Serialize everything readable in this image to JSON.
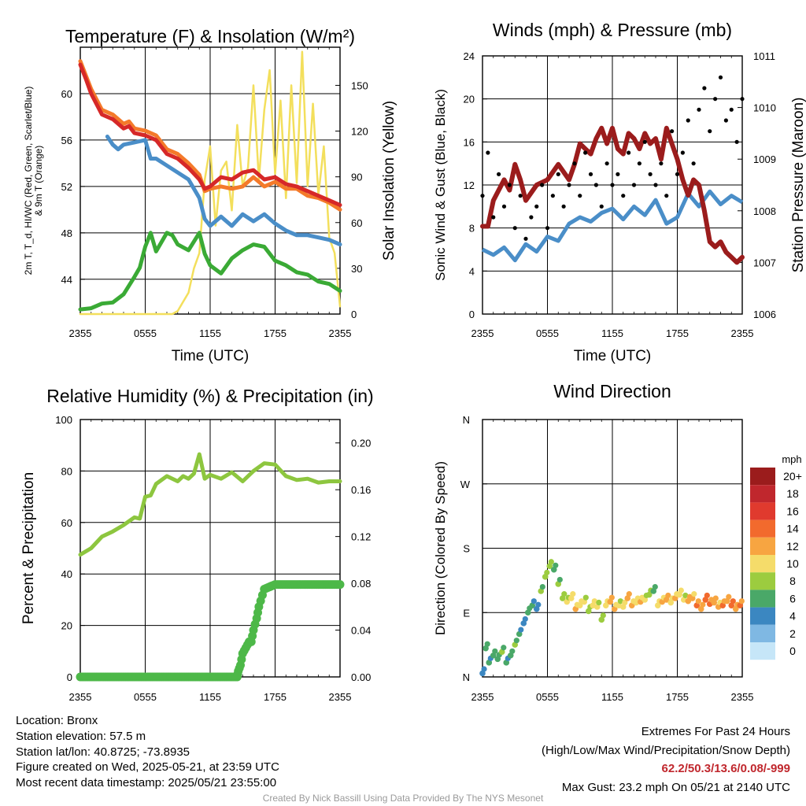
{
  "chart_data": [
    {
      "type": "line",
      "title": "Temperature (F) & Insolation (W/m²)",
      "xlabel": "Time (UTC)",
      "ylabel": "2m T, T_d, HI/WC (Red, Green, Scarlet/Blue) & 9m T (Orange)",
      "ylabel2": "Solar Insolation (Yellow)",
      "x_ticks": [
        "2355",
        "0555",
        "1155",
        "1755",
        "2355"
      ],
      "ylim": [
        41,
        64
      ],
      "y_ticks": [
        44,
        48,
        52,
        56,
        60
      ],
      "y2lim": [
        0,
        175
      ],
      "y2_ticks": [
        0,
        30,
        60,
        90,
        120,
        150
      ],
      "colors": {
        "temp": "#d62828",
        "temp9m": "#f47a2a",
        "wc": "#4a8ec8",
        "dewpoint": "#3aaa35",
        "solar": "#f3df5c"
      },
      "series": [
        {
          "key": "temp9m",
          "x": [
            0,
            0.5,
            1,
            2,
            3,
            4,
            4.5,
            5,
            6,
            7,
            8,
            9,
            10,
            11,
            11.5,
            12,
            13,
            14,
            15,
            16,
            17,
            18,
            19,
            20,
            21,
            22,
            23,
            24
          ],
          "values": [
            62.8,
            61.6,
            60.4,
            58.6,
            58.2,
            57.4,
            57.6,
            57.0,
            56.8,
            56.4,
            55.2,
            54.8,
            54.0,
            53.0,
            51.6,
            51.8,
            52.0,
            51.8,
            52.0,
            52.8,
            52.0,
            52.4,
            51.8,
            51.8,
            51.2,
            51.0,
            50.6,
            50.0
          ]
        },
        {
          "key": "temp",
          "x": [
            0,
            0.5,
            1,
            2,
            3,
            4,
            4.5,
            5,
            6,
            7,
            8,
            9,
            10,
            11,
            11.5,
            12,
            13,
            14,
            15,
            16,
            17,
            18,
            19,
            20,
            21,
            22,
            23,
            24
          ],
          "values": [
            62.5,
            61.3,
            60.0,
            58.2,
            57.8,
            57.0,
            57.2,
            56.6,
            56.4,
            56.0,
            54.8,
            54.4,
            53.6,
            52.6,
            51.8,
            52.0,
            52.8,
            52.6,
            53.2,
            53.4,
            52.6,
            52.8,
            52.2,
            52.0,
            51.6,
            51.2,
            50.8,
            50.4
          ]
        },
        {
          "key": "wc",
          "x": [
            2.5,
            3,
            3.5,
            4,
            5,
            6,
            6.5,
            7,
            8,
            9,
            10,
            11,
            11.5,
            12,
            13,
            14,
            15,
            16,
            17,
            18,
            19,
            20,
            21,
            22,
            23,
            24
          ],
          "values": [
            56.3,
            55.6,
            55.2,
            55.6,
            55.8,
            56.0,
            54.4,
            54.4,
            53.8,
            53.2,
            52.6,
            51.0,
            49.2,
            48.6,
            49.4,
            48.6,
            49.6,
            49.0,
            49.6,
            48.8,
            48.2,
            47.8,
            47.8,
            47.6,
            47.4,
            47.0
          ]
        },
        {
          "key": "dewpoint",
          "x": [
            0,
            1,
            2,
            3,
            4,
            5,
            5.5,
            6,
            6.5,
            7,
            8,
            8.5,
            9,
            10,
            11,
            11.5,
            12,
            13,
            14,
            15,
            16,
            17,
            18,
            19,
            20,
            21,
            22,
            23,
            24
          ],
          "values": [
            41.4,
            41.5,
            41.9,
            42.0,
            42.7,
            44.2,
            45.0,
            46.8,
            48.0,
            46.4,
            48.0,
            47.8,
            47.0,
            46.5,
            48.0,
            46.2,
            45.2,
            44.5,
            45.8,
            46.5,
            47.0,
            46.8,
            45.6,
            45.2,
            44.6,
            44.4,
            43.8,
            43.6,
            43.0
          ]
        },
        {
          "key": "solar",
          "x": [
            0,
            1,
            2,
            3,
            4,
            5,
            6,
            7,
            8,
            8.5,
            9,
            9.5,
            10,
            10.5,
            11,
            11.5,
            12,
            12.5,
            13,
            13.5,
            14,
            14.5,
            15,
            15.5,
            16,
            16.5,
            17,
            17.5,
            18,
            18.5,
            19,
            19.5,
            20,
            20.5,
            21,
            21.5,
            22,
            22.5,
            23,
            23.5,
            24
          ],
          "values": [
            0,
            0,
            0,
            0,
            0,
            0,
            0,
            0,
            0,
            0,
            2,
            8,
            14,
            30,
            40,
            88,
            110,
            58,
            94,
            100,
            68,
            124,
            84,
            96,
            150,
            88,
            134,
            160,
            92,
            140,
            76,
            150,
            86,
            172,
            84,
            138,
            78,
            110,
            50,
            40,
            5
          ]
        }
      ]
    },
    {
      "type": "line",
      "title": "Winds (mph) & Pressure (mb)",
      "xlabel": "Time (UTC)",
      "ylabel": "Sonic Wind & Gust (Blue, Black)",
      "ylabel2": "Station Pressure (Maroon)",
      "x_ticks": [
        "2355",
        "0555",
        "1155",
        "1755",
        "2355"
      ],
      "ylim": [
        0,
        24
      ],
      "y_ticks": [
        0,
        4,
        8,
        12,
        16,
        20,
        24
      ],
      "y2lim": [
        1006,
        1011
      ],
      "y2_ticks": [
        1006,
        1007,
        1008,
        1009,
        1010,
        1011
      ],
      "colors": {
        "wind": "#4a8ec8",
        "gust": "#000000",
        "pressure": "#9b1c1c"
      },
      "series": [
        {
          "key": "wind",
          "x": [
            0,
            1,
            2,
            3,
            4,
            5,
            6,
            7,
            8,
            9,
            10,
            11,
            12,
            13,
            14,
            15,
            16,
            17,
            18,
            19,
            20,
            21,
            22,
            23,
            24
          ],
          "values": [
            6.0,
            5.5,
            6.2,
            5.0,
            6.5,
            5.8,
            7.2,
            6.8,
            8.4,
            9.0,
            8.6,
            9.4,
            9.8,
            8.8,
            10.0,
            9.2,
            10.6,
            8.4,
            9.0,
            11.2,
            10.0,
            11.4,
            10.2,
            11.0,
            10.4
          ]
        },
        {
          "key": "gust",
          "x": [
            0,
            0.5,
            1,
            1.5,
            2,
            2.5,
            3,
            3.5,
            4,
            4.5,
            5,
            5.5,
            6,
            6.5,
            7,
            7.5,
            8,
            8.5,
            9,
            9.5,
            10,
            10.5,
            11,
            11.5,
            12,
            12.5,
            13,
            13.5,
            14,
            14.5,
            15,
            15.5,
            16,
            16.5,
            17,
            17.5,
            18,
            18.5,
            19,
            19.5,
            20,
            20.5,
            21,
            21.5,
            22,
            22.5,
            23,
            23.5,
            24
          ],
          "values": [
            11,
            15,
            9,
            13,
            10,
            12,
            8,
            11,
            7,
            9,
            10,
            12,
            8,
            11,
            13,
            10,
            12,
            14,
            11,
            15,
            13,
            12,
            10,
            14,
            12,
            13,
            11,
            15,
            12,
            14,
            16,
            13,
            12,
            14,
            11,
            17,
            13,
            15,
            18,
            14,
            19,
            21,
            17,
            20,
            22,
            18,
            19,
            16,
            20
          ]
        },
        {
          "key": "pressure",
          "x": [
            0,
            0.5,
            1,
            1.5,
            2,
            2.5,
            3,
            3.5,
            4,
            5,
            6,
            7,
            8,
            8.5,
            9,
            9.5,
            10,
            10.5,
            11,
            11.5,
            12,
            12.5,
            13,
            13.5,
            14,
            14.5,
            15,
            15.5,
            16,
            16.5,
            17,
            17.5,
            18,
            18.5,
            19,
            19.5,
            20,
            20.5,
            21,
            21.5,
            22,
            22.5,
            23,
            23.5,
            24
          ],
          "values": [
            1007.7,
            1007.7,
            1008.2,
            1008.4,
            1008.6,
            1008.4,
            1008.9,
            1008.6,
            1008.2,
            1008.5,
            1008.6,
            1008.9,
            1008.6,
            1008.9,
            1009.3,
            1009.2,
            1009.1,
            1009.4,
            1009.6,
            1009.3,
            1009.6,
            1009.2,
            1009.1,
            1009.5,
            1009.4,
            1009.2,
            1009.5,
            1009.3,
            1009.4,
            1009.0,
            1009.6,
            1009.3,
            1009.0,
            1008.6,
            1008.3,
            1008.6,
            1008.5,
            1008.0,
            1007.4,
            1007.3,
            1007.4,
            1007.2,
            1007.1,
            1007.0,
            1007.1
          ]
        }
      ]
    },
    {
      "type": "line",
      "title": "Relative Humidity (%) & Precipitation (in)",
      "xlabel": "",
      "ylabel": "Percent & Precipitation",
      "x_ticks": [
        "2355",
        "0555",
        "1155",
        "1755",
        "2355"
      ],
      "ylim": [
        0,
        100
      ],
      "y_ticks": [
        0,
        20,
        40,
        60,
        80,
        100
      ],
      "y2lim": [
        0,
        0.22
      ],
      "y2_ticks": [
        "0.00",
        "0.04",
        "0.08",
        "0.12",
        "0.16",
        "0.20"
      ],
      "colors": {
        "rh": "#8dc63f",
        "precip": "#4db848"
      },
      "series": [
        {
          "key": "rh",
          "x": [
            0,
            1,
            2,
            3,
            4,
            5,
            5.5,
            6,
            6.5,
            7,
            8,
            9,
            9.5,
            10,
            10.5,
            11,
            11.5,
            12,
            13,
            14,
            15,
            16,
            17,
            18,
            19,
            20,
            21,
            22,
            23,
            24
          ],
          "values": [
            47.5,
            50.0,
            54.5,
            56.5,
            59.0,
            62.0,
            61.5,
            70.0,
            70.5,
            75.0,
            78.0,
            76.0,
            78.0,
            77.0,
            79.0,
            86.5,
            77.0,
            78.5,
            77.0,
            79.5,
            76.0,
            80.0,
            83.0,
            82.5,
            78.0,
            76.5,
            77.0,
            75.5,
            76.0,
            76.0
          ]
        },
        {
          "key": "precip",
          "x": [
            0,
            14.5,
            14.6,
            14.8,
            15,
            15.3,
            15.6,
            15.8,
            16,
            16.3,
            16.5,
            17,
            18,
            24
          ],
          "values": [
            0,
            0,
            0.005,
            0.01,
            0.02,
            0.025,
            0.03,
            0.03,
            0.04,
            0.05,
            0.06,
            0.075,
            0.079,
            0.079
          ]
        }
      ]
    },
    {
      "type": "scatter",
      "title": "Wind Direction",
      "ylabel": "Direction (Colored By Speed)",
      "x_ticks": [
        "2355",
        "0555",
        "1155",
        "1755",
        "2355"
      ],
      "y_ticks": [
        "N",
        "E",
        "S",
        "W",
        "N"
      ],
      "ylim": [
        0,
        360
      ],
      "legend": {
        "title": "mph",
        "labels": [
          "20+",
          "18",
          "16",
          "14",
          "12",
          "10",
          "8",
          "6",
          "4",
          "2",
          "0"
        ],
        "colors": [
          "#9b1c1c",
          "#c0272d",
          "#e03a2e",
          "#f26a2d",
          "#f7a541",
          "#f5dc6a",
          "#9ccc3f",
          "#4aa868",
          "#3b87c1",
          "#7fb8e3",
          "#c6e6f8"
        ]
      },
      "series": [
        {
          "key": "direction",
          "x": [
            0,
            0.3,
            0.6,
            1,
            1.4,
            1.8,
            2.2,
            2.6,
            3,
            3.4,
            3.8,
            4.2,
            4.6,
            5,
            5.4,
            5.8,
            6.2,
            6.6,
            7,
            7.4,
            7.8,
            8.2,
            8.6,
            9,
            9.4,
            9.8,
            10.2,
            10.6,
            11,
            11.4,
            11.8,
            12.2,
            12.6,
            13,
            13.4,
            13.8,
            14.2,
            14.6,
            15,
            15.4,
            15.8,
            16.2,
            16.6,
            17,
            17.4,
            17.8,
            18.2,
            18.6,
            19,
            19.4,
            19.8,
            20.2,
            20.6,
            21,
            21.4,
            21.8,
            22.2,
            22.6,
            23,
            23.4,
            23.8
          ],
          "values": [
            5,
            40,
            20,
            30,
            25,
            35,
            20,
            30,
            45,
            60,
            75,
            90,
            100,
            95,
            120,
            140,
            155,
            150,
            130,
            110,
            105,
            110,
            95,
            100,
            105,
            92,
            100,
            98,
            80,
            100,
            105,
            95,
            100,
            98,
            110,
            100,
            104,
            105,
            108,
            115,
            120,
            100,
            105,
            108,
            104,
            110,
            115,
            108,
            106,
            110,
            100,
            95,
            108,
            102,
            104,
            98,
            100,
            106,
            100,
            95,
            100
          ],
          "speeds": [
            4,
            6,
            5,
            6,
            6,
            7,
            5,
            6,
            7,
            5,
            4,
            6,
            5,
            4,
            7,
            8,
            8,
            6,
            7,
            8,
            9,
            10,
            11,
            10,
            9,
            8,
            10,
            9,
            8,
            10,
            12,
            11,
            9,
            10,
            12,
            11,
            10,
            11,
            9,
            8,
            6,
            10,
            11,
            12,
            10,
            11,
            10,
            9,
            12,
            11,
            13,
            12,
            14,
            13,
            12,
            11,
            13,
            12,
            14,
            12,
            13
          ]
        }
      ]
    }
  ],
  "footer": {
    "location": "Location: Bronx",
    "elevation": "Station elevation: 57.5 m",
    "latlon": "Station lat/lon: 40.8725; -73.8935",
    "created": "Figure created on Wed, 2025-05-21, at 23:59 UTC",
    "recent": "Most recent data timestamp: 2025/05/21 23:55:00",
    "extremes_title": "Extremes For Past 24 Hours",
    "extremes_sub": "(High/Low/Max Wind/Precipitation/Snow Depth)",
    "extremes_values": "62.2/50.3/13.6/0.08/-999",
    "max_gust": "Max Gust: 23.2 mph On 05/21 at 2140 UTC",
    "credit": "Created By Nick Bassill Using Data Provided By The NYS Mesonet"
  }
}
